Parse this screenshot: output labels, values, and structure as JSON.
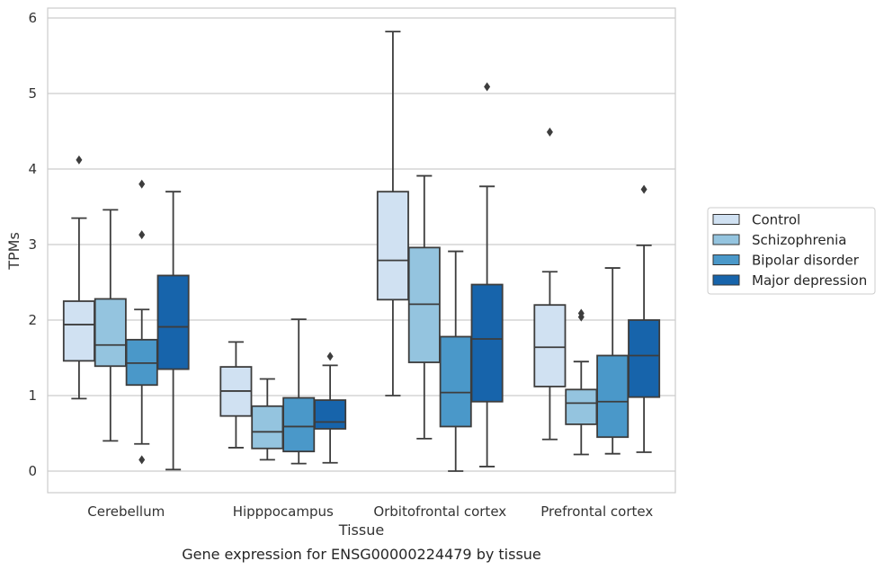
{
  "chart_data": {
    "type": "box",
    "xlabel": "Tissue",
    "ylabel": "TPMs",
    "caption": "Gene expression for ENSG00000224479 by tissue",
    "ylim": [
      -0.28,
      6.15
    ],
    "yticks": [
      "0",
      "1",
      "2",
      "3",
      "4",
      "5",
      "6"
    ],
    "grid": "horizontal",
    "legend_position": "right",
    "categories": [
      "Cerebellum",
      "Hipppocampus",
      "Orbitofrontal cortex",
      "Prefrontal cortex"
    ],
    "series": [
      {
        "name": "Control",
        "color": "#d0e1f2",
        "boxes": [
          {
            "whislo": 0.96,
            "q1": 1.46,
            "med": 1.94,
            "q3": 2.25,
            "whishi": 3.35,
            "fliers": [
              4.12
            ]
          },
          {
            "whislo": 0.31,
            "q1": 0.73,
            "med": 1.06,
            "q3": 1.38,
            "whishi": 1.71,
            "fliers": []
          },
          {
            "whislo": 1.0,
            "q1": 2.27,
            "med": 2.79,
            "q3": 3.7,
            "whishi": 5.82,
            "fliers": []
          },
          {
            "whislo": 0.42,
            "q1": 1.12,
            "med": 1.64,
            "q3": 2.2,
            "whishi": 2.64,
            "fliers": [
              4.49
            ]
          }
        ]
      },
      {
        "name": "Schizophrenia",
        "color": "#94c4df",
        "boxes": [
          {
            "whislo": 0.4,
            "q1": 1.39,
            "med": 1.67,
            "q3": 2.28,
            "whishi": 3.46,
            "fliers": []
          },
          {
            "whislo": 0.15,
            "q1": 0.3,
            "med": 0.52,
            "q3": 0.86,
            "whishi": 1.22,
            "fliers": []
          },
          {
            "whislo": 0.43,
            "q1": 1.44,
            "med": 2.21,
            "q3": 2.96,
            "whishi": 3.91,
            "fliers": []
          },
          {
            "whislo": 0.22,
            "q1": 0.62,
            "med": 0.9,
            "q3": 1.08,
            "whishi": 1.45,
            "fliers": [
              2.04,
              2.09
            ]
          }
        ]
      },
      {
        "name": "Bipolar disorder",
        "color": "#4a98c9",
        "boxes": [
          {
            "whislo": 0.36,
            "q1": 1.14,
            "med": 1.43,
            "q3": 1.74,
            "whishi": 2.14,
            "fliers": [
              3.13,
              3.8,
              0.15
            ]
          },
          {
            "whislo": 0.1,
            "q1": 0.26,
            "med": 0.59,
            "q3": 0.97,
            "whishi": 2.01,
            "fliers": []
          },
          {
            "whislo": 0.0,
            "q1": 0.59,
            "med": 1.04,
            "q3": 1.78,
            "whishi": 2.91,
            "fliers": []
          },
          {
            "whislo": 0.23,
            "q1": 0.45,
            "med": 0.92,
            "q3": 1.53,
            "whishi": 2.69,
            "fliers": []
          }
        ]
      },
      {
        "name": "Major depression",
        "color": "#1764ab",
        "boxes": [
          {
            "whislo": 0.02,
            "q1": 1.35,
            "med": 1.91,
            "q3": 2.59,
            "whishi": 3.7,
            "fliers": []
          },
          {
            "whislo": 0.11,
            "q1": 0.56,
            "med": 0.65,
            "q3": 0.94,
            "whishi": 1.4,
            "fliers": [
              1.52
            ]
          },
          {
            "whislo": 0.06,
            "q1": 0.92,
            "med": 1.75,
            "q3": 2.47,
            "whishi": 3.77,
            "fliers": [
              5.09
            ]
          },
          {
            "whislo": 0.25,
            "q1": 0.98,
            "med": 1.53,
            "q3": 2.0,
            "whishi": 2.99,
            "fliers": [
              3.73
            ]
          }
        ]
      }
    ]
  }
}
